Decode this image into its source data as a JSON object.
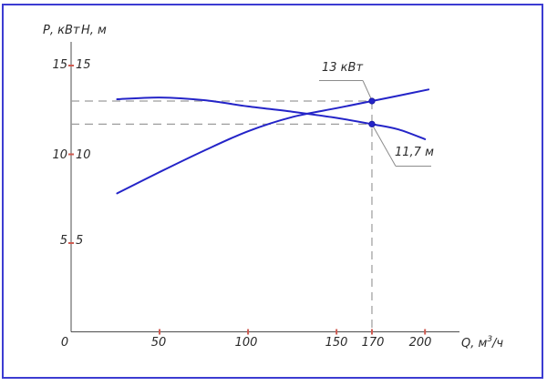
{
  "frame": {
    "border_color": "#3c3cd2",
    "background": "#ffffff"
  },
  "axes": {
    "p_axis_title": "Р, кВт",
    "h_axis_title": "Н, м",
    "q_axis_title_base": "Q, м",
    "q_axis_title_sup": "3",
    "q_axis_title_rest": "/ч",
    "p_tick_labels": [
      "15",
      "10",
      "5"
    ],
    "h_tick_labels": [
      "15",
      "10",
      "5"
    ],
    "x_tick_labels": [
      "0",
      "50",
      "100",
      "150",
      "170",
      "200"
    ]
  },
  "annotations": {
    "power_label": "13 кВт",
    "head_label": "11,7 м"
  },
  "chart_data": {
    "type": "line",
    "xlabel": "Q, м³/ч",
    "ylabel_left": "Р, кВт",
    "ylabel_right": "Н, м",
    "xlim": [
      0,
      220
    ],
    "ylim": [
      0,
      16.3
    ],
    "x_ticks": [
      0,
      50,
      100,
      150,
      170,
      200
    ],
    "y_ticks": [
      5,
      10,
      15
    ],
    "grid": false,
    "legend": "none",
    "curve_color": "#2424c8",
    "guide_color": "#9c9c9c",
    "tick_color": "#cf5a50",
    "series": [
      {
        "name": "Р, кВт (power curve)",
        "x": [
          26,
          50,
          75,
          100,
          125,
          150,
          170,
          185,
          202
        ],
        "values": [
          7.8,
          9.0,
          10.2,
          11.3,
          12.1,
          12.6,
          13.0,
          13.3,
          13.65
        ]
      },
      {
        "name": "Н, м (head curve)",
        "x": [
          26,
          50,
          75,
          100,
          125,
          150,
          170,
          185,
          200
        ],
        "values": [
          13.1,
          13.2,
          13.05,
          12.7,
          12.4,
          12.05,
          11.7,
          11.4,
          10.85
        ]
      }
    ],
    "operating_point": {
      "q": 170,
      "p_kw": 13,
      "h_m": 11.7
    },
    "annotations": [
      {
        "text": "13 кВт",
        "target": {
          "q": 170,
          "value": 13
        }
      },
      {
        "text": "11,7 м",
        "target": {
          "q": 170,
          "value": 11.7
        }
      }
    ],
    "guides": "dashed lines from both axes values (13 and 11.7) to operating point at Q = 170"
  }
}
